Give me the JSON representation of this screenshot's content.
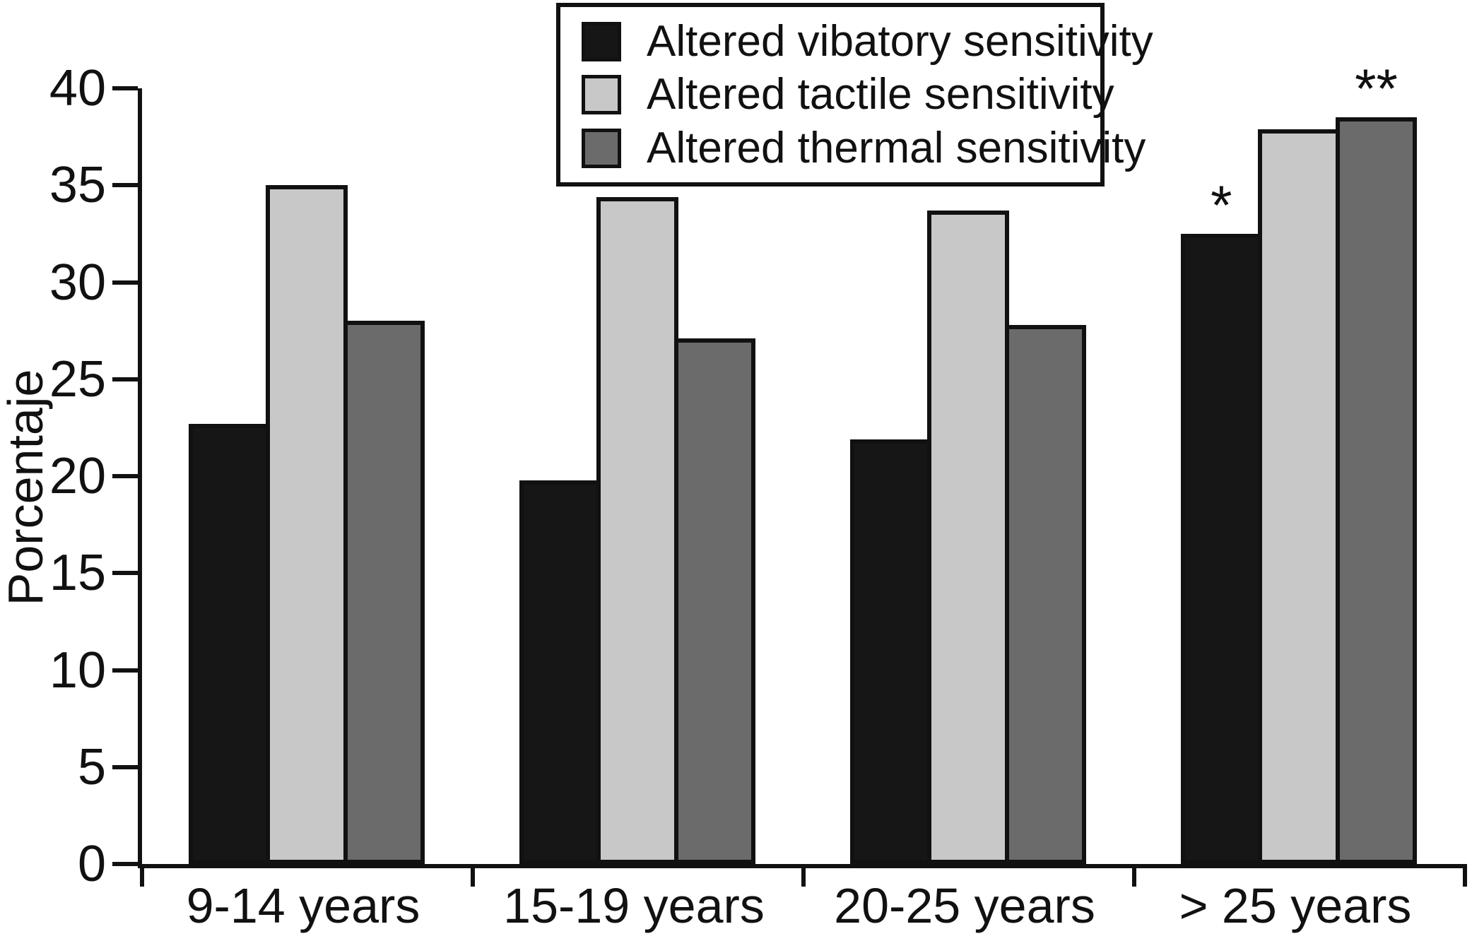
{
  "chart_data": {
    "type": "bar",
    "title": "",
    "xlabel": "",
    "ylabel": "Porcentaje",
    "ylim": [
      0,
      40
    ],
    "yticks": [
      0,
      5,
      10,
      15,
      20,
      25,
      30,
      35,
      40
    ],
    "grid": false,
    "legend_position": "top-center",
    "categories": [
      "9-14 years",
      "15-19 years",
      "20-25 years",
      "> 25 years"
    ],
    "series": [
      {
        "name": "Altered vibatory sensitivity",
        "color": "#161616",
        "values": [
          22.7,
          19.8,
          21.9,
          32.5
        ],
        "annotations": [
          "",
          "",
          "",
          "*"
        ]
      },
      {
        "name": "Altered tactile sensitivity",
        "color": "#c8c8c8",
        "values": [
          35.0,
          34.4,
          33.7,
          37.9
        ],
        "annotations": [
          "",
          "",
          "",
          ""
        ]
      },
      {
        "name": "Altered thermal sensitivity",
        "color": "#6b6b6b",
        "values": [
          28.0,
          27.1,
          27.8,
          38.5
        ],
        "annotations": [
          "",
          "",
          "",
          "**"
        ]
      }
    ],
    "axis_color": "#111111",
    "background_color": "#ffffff"
  }
}
